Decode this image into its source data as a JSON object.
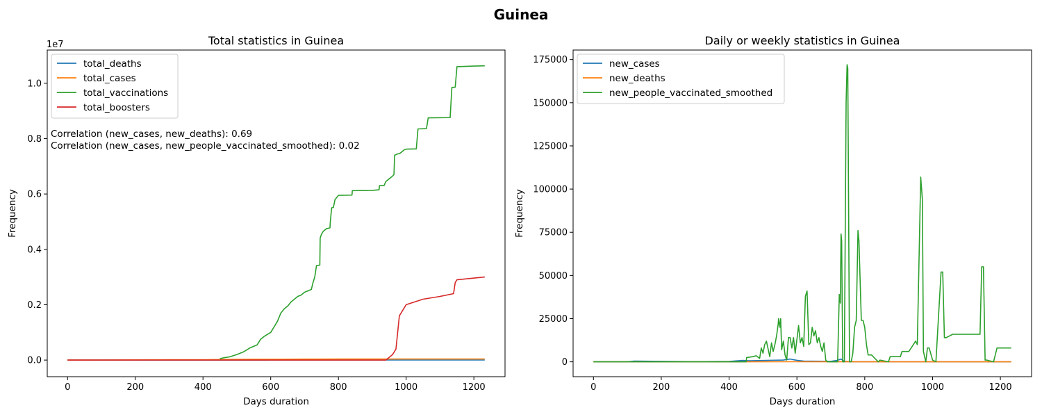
{
  "figure": {
    "title": "Guinea"
  },
  "chart_data": [
    {
      "type": "line",
      "title": "Total statistics in Guinea",
      "xlabel": "Days duration",
      "ylabel": "Frequency",
      "y_scale_label": "1e7",
      "xlim": [
        -60,
        1292
      ],
      "ylim": [
        -600000,
        11200000
      ],
      "xticks": [
        0,
        200,
        400,
        600,
        800,
        1000,
        1200
      ],
      "yticks": [
        0,
        2000000,
        4000000,
        6000000,
        8000000,
        10000000
      ],
      "ytick_labels": [
        "0.0",
        "0.2",
        "0.4",
        "0.6",
        "0.8",
        "1.0"
      ],
      "legend_position": "upper-left",
      "annotations": [
        "Correlation (new_cases, new_deaths): 0.69",
        "Correlation (new_cases, new_people_vaccinated_smoothed): 0.02"
      ],
      "series": [
        {
          "name": "total_deaths",
          "color": "#1f77b4",
          "x": [
            0,
            100,
            200,
            300,
            400,
            500,
            600,
            700,
            800,
            900,
            1000,
            1100,
            1232
          ],
          "y": [
            0,
            100,
            300,
            600,
            900,
            1200,
            1500,
            1800,
            2000,
            2100,
            2200,
            2250,
            2260
          ]
        },
        {
          "name": "total_cases",
          "color": "#ff7f0e",
          "x": [
            0,
            100,
            200,
            300,
            400,
            450,
            500,
            550,
            600,
            650,
            700,
            750,
            800,
            900,
            1000,
            1100,
            1232
          ],
          "y": [
            0,
            3000,
            8000,
            12000,
            15000,
            20000,
            25000,
            30000,
            31000,
            33000,
            35000,
            36000,
            37000,
            37500,
            38000,
            38300,
            38500
          ]
        },
        {
          "name": "total_vaccinations",
          "color": "#2ca02c",
          "x": [
            450,
            460,
            480,
            500,
            520,
            540,
            550,
            560,
            570,
            580,
            600,
            610,
            620,
            630,
            640,
            650,
            660,
            670,
            680,
            690,
            700,
            710,
            720,
            725,
            730,
            735,
            736,
            745,
            746,
            750,
            755,
            760,
            765,
            770,
            775,
            776,
            780,
            785,
            790,
            800,
            840,
            841,
            900,
            920,
            921,
            935,
            940,
            950,
            960,
            964,
            966,
            975,
            980,
            985,
            995,
            1000,
            1030,
            1035,
            1060,
            1065,
            1130,
            1135,
            1145,
            1150,
            1200,
            1232
          ],
          "y": [
            50000,
            80000,
            120000,
            200000,
            300000,
            450000,
            500000,
            550000,
            750000,
            850000,
            1000000,
            1200000,
            1400000,
            1700000,
            1850000,
            1950000,
            2100000,
            2200000,
            2300000,
            2350000,
            2450000,
            2500000,
            2550000,
            2800000,
            3000000,
            3400000,
            3420000,
            3430000,
            4400000,
            4550000,
            4650000,
            4700000,
            4750000,
            4760000,
            4780000,
            4990000,
            5500000,
            5510000,
            5800000,
            5950000,
            5960000,
            6120000,
            6130000,
            6150000,
            6300000,
            6310000,
            6450000,
            6550000,
            6650000,
            6700000,
            7400000,
            7450000,
            7460000,
            7500000,
            7600000,
            7620000,
            7630000,
            8350000,
            8360000,
            8750000,
            8760000,
            9850000,
            9860000,
            10600000,
            10620000,
            10630000
          ]
        },
        {
          "name": "total_boosters",
          "color": "#d62728",
          "x": [
            0,
            400,
            900,
            940,
            950,
            960,
            965,
            970,
            980,
            1000,
            1050,
            1100,
            1140,
            1145,
            1150,
            1232
          ],
          "y": [
            0,
            0,
            0,
            0,
            100000,
            200000,
            300000,
            400000,
            1600000,
            2000000,
            2200000,
            2300000,
            2400000,
            2800000,
            2900000,
            3000000
          ]
        }
      ]
    },
    {
      "type": "line",
      "title": "Daily or weekly statistics in Guinea",
      "xlabel": "Days duration",
      "ylabel": "Frequency",
      "xlim": [
        -60,
        1292
      ],
      "ylim": [
        -8600,
        180500
      ],
      "xticks": [
        0,
        200,
        400,
        600,
        800,
        1000,
        1200
      ],
      "yticks": [
        0,
        25000,
        50000,
        75000,
        100000,
        125000,
        150000,
        175000
      ],
      "legend_position": "upper-left",
      "series": [
        {
          "name": "new_cases",
          "color": "#1f77b4",
          "x": [
            0,
            100,
            120,
            200,
            300,
            400,
            440,
            460,
            560,
            580,
            590,
            600,
            620,
            700,
            720,
            730,
            735,
            740,
            760,
            900,
            1232
          ],
          "y": [
            0,
            0,
            400,
            300,
            100,
            200,
            800,
            600,
            1000,
            1600,
            1200,
            900,
            400,
            300,
            900,
            1600,
            900,
            300,
            100,
            50,
            0
          ]
        },
        {
          "name": "new_deaths",
          "color": "#ff7f0e",
          "x": [
            0,
            400,
            600,
            800,
            1000,
            1232
          ],
          "y": [
            0,
            20,
            40,
            10,
            5,
            0
          ]
        },
        {
          "name": "new_people_vaccinated_smoothed",
          "color": "#2ca02c",
          "x": [
            0,
            450,
            452,
            470,
            480,
            490,
            495,
            500,
            505,
            510,
            520,
            525,
            530,
            535,
            540,
            545,
            546,
            550,
            552,
            555,
            560,
            565,
            570,
            575,
            580,
            585,
            590,
            595,
            600,
            605,
            610,
            615,
            620,
            625,
            630,
            635,
            640,
            645,
            650,
            655,
            660,
            665,
            670,
            675,
            680,
            685,
            690,
            700,
            710,
            720,
            725,
            728,
            730,
            732,
            735,
            740,
            745,
            748,
            750,
            755,
            760,
            765,
            770,
            775,
            780,
            783,
            790,
            795,
            800,
            805,
            810,
            820,
            840,
            845,
            870,
            875,
            905,
            910,
            930,
            940,
            950,
            955,
            965,
            970,
            973,
            980,
            985,
            990,
            1000,
            1010,
            1025,
            1030,
            1035,
            1040,
            1060,
            1070,
            1140,
            1145,
            1150,
            1155,
            1160,
            1180,
            1190,
            1232
          ],
          "y": [
            0,
            0,
            2500,
            3000,
            3500,
            2000,
            8000,
            5000,
            10000,
            12000,
            3000,
            11000,
            6000,
            10000,
            15000,
            22000,
            25000,
            20000,
            25000,
            7000,
            12000,
            4000,
            1000,
            14000,
            14000,
            8000,
            14000,
            5000,
            13000,
            21000,
            11000,
            14000,
            9000,
            38000,
            41000,
            10000,
            11000,
            20000,
            15000,
            18000,
            11000,
            14000,
            9000,
            6000,
            11000,
            1000,
            0,
            0,
            0,
            0,
            39000,
            34000,
            74000,
            70000,
            0,
            0,
            150000,
            172000,
            170000,
            0,
            0,
            5000,
            20000,
            24000,
            76000,
            70000,
            24000,
            24000,
            20000,
            10000,
            4000,
            4000,
            0,
            1000,
            0,
            3000,
            3000,
            6000,
            6000,
            9000,
            12000,
            10000,
            107000,
            94000,
            6000,
            0,
            8000,
            8000,
            1000,
            0,
            52000,
            52000,
            14000,
            14000,
            16000,
            16000,
            16000,
            55000,
            55000,
            1000,
            1000,
            0,
            8000,
            8000
          ]
        }
      ]
    }
  ]
}
